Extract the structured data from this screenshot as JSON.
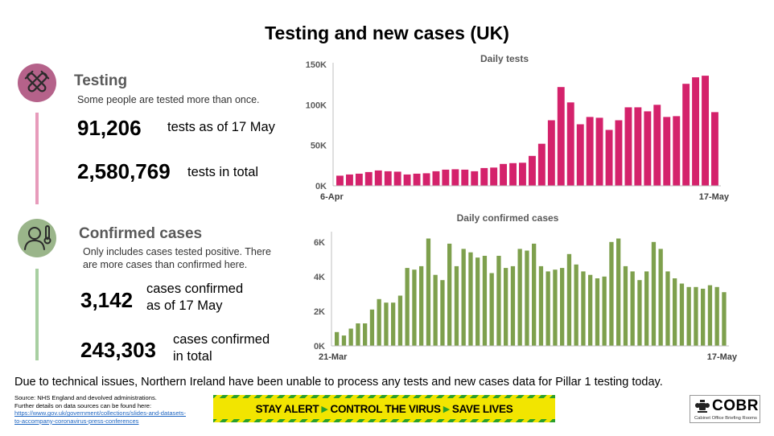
{
  "title": "Testing and new cases (UK)",
  "testing": {
    "heading": "Testing",
    "note": "Some people are tested more than once.",
    "daily_value": "91,206",
    "daily_desc": "tests as of 17 May",
    "total_value": "2,580,769",
    "total_desc": "tests in total",
    "icon": "test-tubes-icon",
    "color": "#d4226b"
  },
  "cases": {
    "heading": "Confirmed cases",
    "note_line1": "Only includes cases tested positive. There",
    "note_line2": "are more cases than confirmed here.",
    "daily_value": "3,142",
    "daily_desc_line1": "cases confirmed",
    "daily_desc_line2": "as of 17 May",
    "total_value": "243,303",
    "total_desc_line1": "cases confirmed",
    "total_desc_line2": "in total",
    "icon": "person-thermometer-icon",
    "color": "#7ea04d"
  },
  "chart_data": [
    {
      "type": "bar",
      "title": "Daily tests",
      "color": "#d4226b",
      "x_start_label": "6-Apr",
      "x_end_label": "17-May",
      "yticks": [
        0,
        50000,
        100000,
        150000
      ],
      "ytick_labels": [
        "0K",
        "50K",
        "100K",
        "150K"
      ],
      "ylim": [
        0,
        150000
      ],
      "values": [
        12500,
        14000,
        15000,
        17000,
        19000,
        18000,
        17500,
        14000,
        15000,
        15500,
        18000,
        20000,
        20500,
        20000,
        18000,
        22000,
        22500,
        27000,
        28000,
        28500,
        37000,
        52000,
        81000,
        122000,
        103000,
        76000,
        85000,
        84000,
        69000,
        81000,
        97000,
        97000,
        92000,
        100000,
        85000,
        86000,
        126000,
        134000,
        136000,
        91000
      ]
    },
    {
      "type": "bar",
      "title": "Daily confirmed cases",
      "color": "#7ea04d",
      "x_start_label": "21-Mar",
      "x_end_label": "17-May",
      "yticks": [
        0,
        2000,
        4000,
        6000
      ],
      "ytick_labels": [
        "0K",
        "2K",
        "4K",
        "6K"
      ],
      "ylim": [
        0,
        6500
      ],
      "values": [
        800,
        600,
        1000,
        1300,
        1300,
        2100,
        2700,
        2500,
        2500,
        2900,
        4500,
        4400,
        4600,
        6200,
        4100,
        3800,
        5900,
        4600,
        5600,
        5400,
        5100,
        5200,
        4200,
        5200,
        4500,
        4600,
        5600,
        5500,
        5900,
        4600,
        4300,
        4400,
        4500,
        5300,
        4700,
        4300,
        4100,
        3900,
        4000,
        6000,
        6200,
        4600,
        4300,
        3800,
        4300,
        6000,
        5600,
        4300,
        3900,
        3600,
        3400,
        3400,
        3300,
        3500,
        3400,
        3100
      ]
    }
  ],
  "footnote": "Due to technical issues, Northern Ireland have been unable to process any tests and new cases data for Pillar 1 testing today.",
  "source": {
    "line1": "Source: NHS England and devolved administrations.",
    "line2": "Further details on data sources can be found here:",
    "link1": "https://www.gov.uk/government/collections/slides-and-datasets-",
    "link2": "to-accompany-coronavirus-press-conferences"
  },
  "banner": {
    "part1": "STAY ALERT",
    "part2": "CONTROL THE VIRUS",
    "part3": "SAVE LIVES",
    "stripe_color": "#2aa02a",
    "bg_color": "#f2e500"
  },
  "logo": {
    "word": "COBR",
    "sub": "Cabinet Office Briefing Rooms",
    "icon": "royal-crest-icon"
  }
}
